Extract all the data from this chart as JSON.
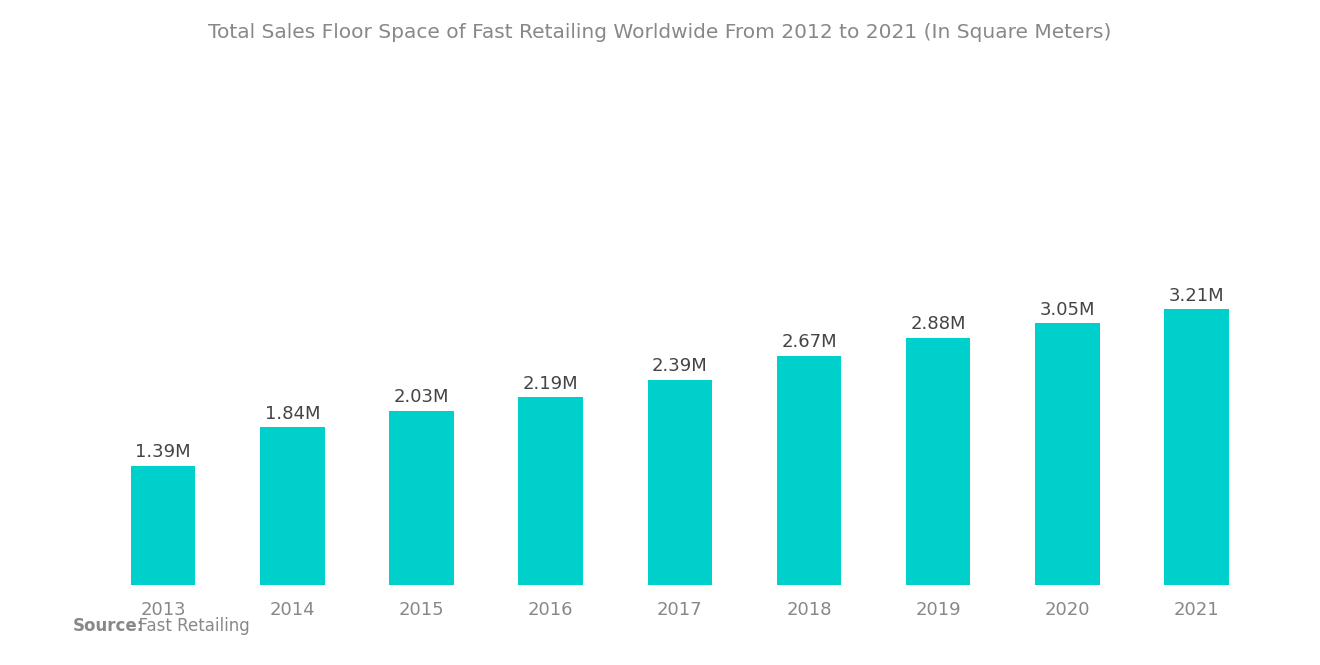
{
  "title": "Total Sales Floor Space of Fast Retailing Worldwide From 2012 to 2021 (In Square Meters)",
  "categories": [
    "2013",
    "2014",
    "2015",
    "2016",
    "2017",
    "2018",
    "2019",
    "2020",
    "2021"
  ],
  "values": [
    1.39,
    1.84,
    2.03,
    2.19,
    2.39,
    2.67,
    2.88,
    3.05,
    3.21
  ],
  "labels": [
    "1.39M",
    "1.84M",
    "2.03M",
    "2.19M",
    "2.39M",
    "2.67M",
    "2.88M",
    "3.05M",
    "3.21M"
  ],
  "bar_color": "#00D0CC",
  "background_color": "#FFFFFF",
  "title_color": "#888888",
  "label_color": "#444444",
  "tick_color": "#888888",
  "source_bold": "Source:",
  "source_normal": "  Fast Retailing",
  "ylim": [
    0,
    5.8
  ],
  "bar_width": 0.5,
  "title_fontsize": 14.5,
  "label_fontsize": 13,
  "tick_fontsize": 13,
  "source_fontsize": 12
}
